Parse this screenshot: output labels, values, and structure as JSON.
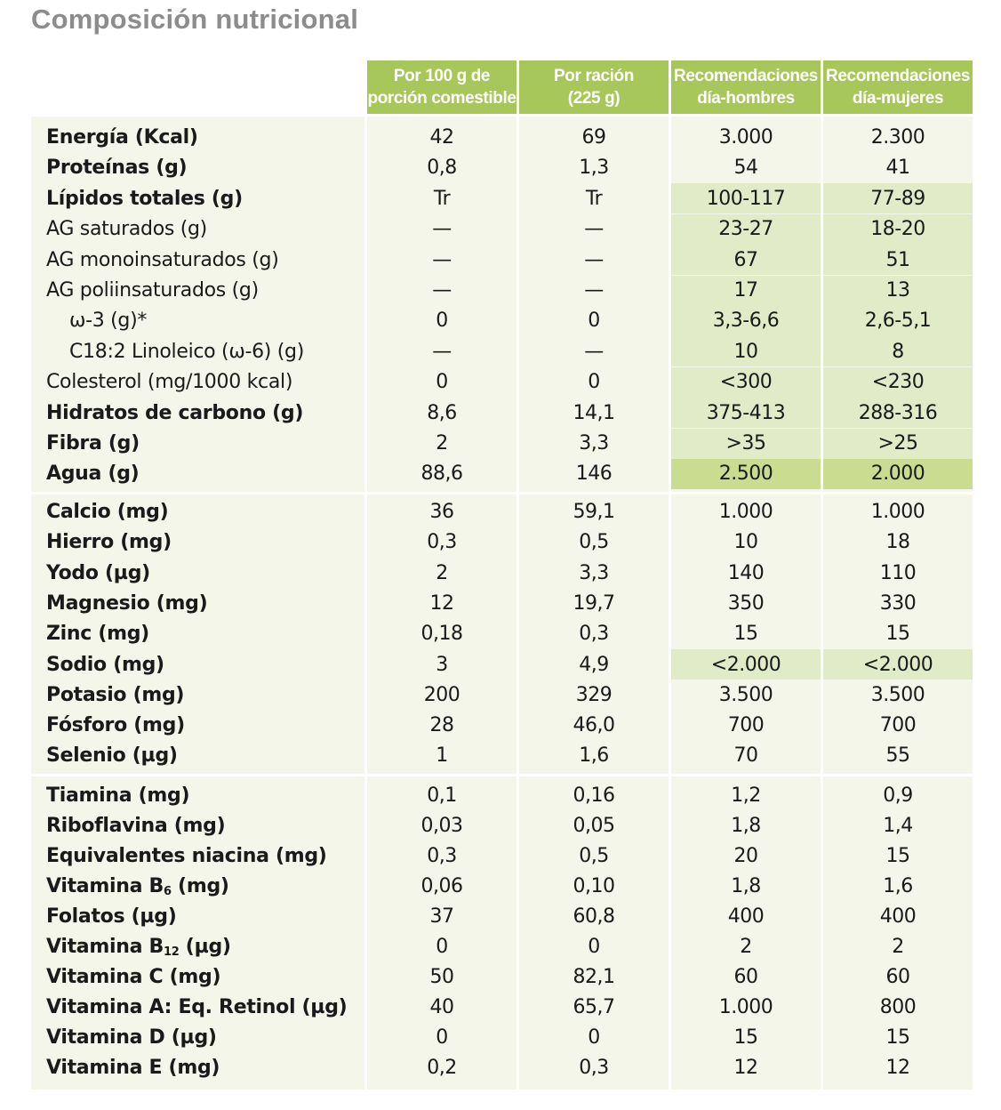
{
  "title": "Composición nutricional",
  "headers": {
    "per100": [
      "Por 100 g de",
      "porción comestible"
    ],
    "perServing": [
      "Por ración",
      "(225 g)"
    ],
    "men": [
      "Recomendaciones",
      "día-hombres"
    ],
    "women": [
      "Recomendaciones",
      "día-mujeres"
    ]
  },
  "rows": [
    {
      "label": "Energía (Kcal)",
      "v": [
        "42",
        "69",
        "3.000",
        "2.300"
      ]
    },
    {
      "label": "Proteínas (g)",
      "v": [
        "0,8",
        "1,3",
        "54",
        "41"
      ]
    },
    {
      "label": "Lípidos totales (g)",
      "v": [
        "Tr",
        "Tr",
        "100-117",
        "77-89"
      ]
    },
    {
      "label": "AG saturados (g)",
      "v": [
        "—",
        "—",
        "23-27",
        "18-20"
      ]
    },
    {
      "label": "AG monoinsaturados (g)",
      "v": [
        "—",
        "—",
        "67",
        "51"
      ]
    },
    {
      "label": "AG poliinsaturados (g)",
      "v": [
        "—",
        "—",
        "17",
        "13"
      ]
    },
    {
      "label": "ω-3 (g)*",
      "v": [
        "0",
        "0",
        "3,3-6,6",
        "2,6-5,1"
      ]
    },
    {
      "label": "C18:2 Linoleico (ω-6) (g)",
      "v": [
        "—",
        "—",
        "10",
        "8"
      ]
    },
    {
      "label": "Colesterol (mg/1000 kcal)",
      "v": [
        "0",
        "0",
        "<300",
        "<230"
      ]
    },
    {
      "label": "Hidratos de carbono (g)",
      "v": [
        "8,6",
        "14,1",
        "375-413",
        "288-316"
      ]
    },
    {
      "label": "Fibra (g)",
      "v": [
        "2",
        "3,3",
        ">35",
        ">25"
      ]
    },
    {
      "label": "Agua (g)",
      "v": [
        "88,6",
        "146",
        "2.500",
        "2.000"
      ]
    },
    {
      "label": "Calcio (mg)",
      "v": [
        "36",
        "59,1",
        "1.000",
        "1.000"
      ]
    },
    {
      "label": "Hierro (mg)",
      "v": [
        "0,3",
        "0,5",
        "10",
        "18"
      ]
    },
    {
      "label": "Yodo (µg)",
      "v": [
        "2",
        "3,3",
        "140",
        "110"
      ]
    },
    {
      "label": "Magnesio (mg)",
      "v": [
        "12",
        "19,7",
        "350",
        "330"
      ]
    },
    {
      "label": "Zinc (mg)",
      "v": [
        "0,18",
        "0,3",
        "15",
        "15"
      ]
    },
    {
      "label": "Sodio (mg)",
      "v": [
        "3",
        "4,9",
        "<2.000",
        "<2.000"
      ]
    },
    {
      "label": "Potasio (mg)",
      "v": [
        "200",
        "329",
        "3.500",
        "3.500"
      ]
    },
    {
      "label": "Fósforo (mg)",
      "v": [
        "28",
        "46,0",
        "700",
        "700"
      ]
    },
    {
      "label": "Selenio (µg)",
      "v": [
        "1",
        "1,6",
        "70",
        "55"
      ]
    },
    {
      "label": "Tiamina (mg)",
      "v": [
        "0,1",
        "0,16",
        "1,2",
        "0,9"
      ]
    },
    {
      "label": "Riboflavina (mg)",
      "v": [
        "0,03",
        "0,05",
        "1,8",
        "1,4"
      ]
    },
    {
      "label": "Equivalentes niacina (mg)",
      "v": [
        "0,3",
        "0,5",
        "20",
        "15"
      ]
    },
    {
      "label": "Vitamina B6 (mg)",
      "v": [
        "0,06",
        "0,10",
        "1,8",
        "1,6"
      ]
    },
    {
      "label": "Folatos (µg)",
      "v": [
        "37",
        "60,8",
        "400",
        "400"
      ]
    },
    {
      "label": "Vitamina B12 (µg)",
      "v": [
        "0",
        "0",
        "2",
        "2"
      ]
    },
    {
      "label": "Vitamina C (mg)",
      "v": [
        "50",
        "82,1",
        "60",
        "60"
      ]
    },
    {
      "label": "Vitamina A: Eq. Retinol (µg)",
      "v": [
        "40",
        "65,7",
        "1.000",
        "800"
      ]
    },
    {
      "label": "Vitamina D (µg)",
      "v": [
        "0",
        "0",
        "15",
        "15"
      ]
    },
    {
      "label": "Vitamina E (mg)",
      "v": [
        "0,2",
        "0,3",
        "12",
        "12"
      ]
    }
  ],
  "colors": {
    "header": "#a8c75a",
    "band": "#f3f6e9",
    "highlightLight": "#e2ebc8",
    "highlightStrong": "#c9dc8f",
    "title": "#8c8c8c"
  }
}
